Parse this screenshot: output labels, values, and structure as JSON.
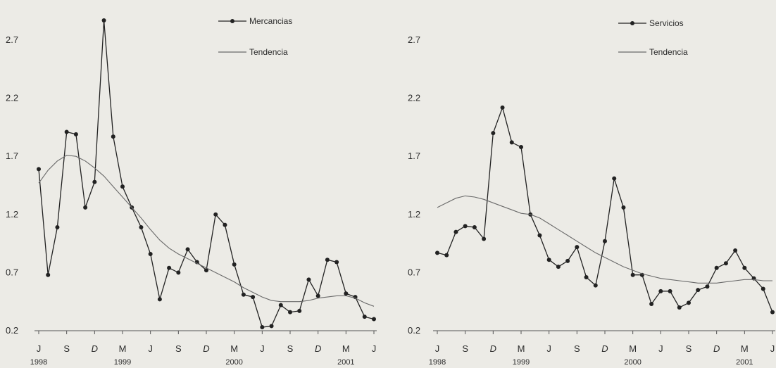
{
  "chart_data": [
    {
      "type": "line",
      "title": "",
      "xlabel": "",
      "ylabel": "",
      "ylim": [
        0.2,
        2.9
      ],
      "yticks": [
        "2.7",
        "2.2",
        "1.7",
        "1.2",
        "0.7",
        "0.2"
      ],
      "x_month_labels": [
        "J",
        "S",
        "D",
        "M",
        "J",
        "S",
        "D",
        "M",
        "J",
        "S",
        "D",
        "M",
        "J"
      ],
      "x_year_labels": [
        "1998",
        "1999",
        "2000",
        "2001"
      ],
      "x_start": "1998-06",
      "x_end": "2001-06",
      "legend_position": "top-right",
      "grid": false,
      "series": [
        {
          "name": "Mercancias",
          "style": "line-with-markers",
          "color": "#222222",
          "values": [
            1.59,
            0.68,
            1.09,
            1.91,
            1.89,
            1.26,
            1.48,
            2.87,
            1.87,
            1.44,
            1.26,
            1.09,
            0.86,
            0.47,
            0.74,
            0.7,
            0.9,
            0.79,
            0.72,
            1.2,
            1.11,
            0.77,
            0.51,
            0.49,
            0.23,
            0.24,
            0.42,
            0.36,
            0.37,
            0.64,
            0.5,
            0.81,
            0.79,
            0.52,
            0.49,
            0.32,
            0.3
          ]
        },
        {
          "name": "Tendencia",
          "style": "line",
          "color": "#6a6a6a",
          "values": [
            1.47,
            1.58,
            1.66,
            1.71,
            1.7,
            1.66,
            1.6,
            1.53,
            1.44,
            1.35,
            1.26,
            1.17,
            1.07,
            0.98,
            0.91,
            0.86,
            0.82,
            0.78,
            0.74,
            0.7,
            0.66,
            0.62,
            0.57,
            0.53,
            0.49,
            0.46,
            0.45,
            0.45,
            0.45,
            0.46,
            0.48,
            0.49,
            0.5,
            0.5,
            0.48,
            0.44,
            0.41
          ]
        }
      ]
    },
    {
      "type": "line",
      "title": "",
      "xlabel": "",
      "ylabel": "",
      "ylim": [
        0.2,
        2.9
      ],
      "yticks": [
        "2.7",
        "2.2",
        "1.7",
        "1.2",
        "0.7",
        "0.2"
      ],
      "x_month_labels": [
        "J",
        "S",
        "D",
        "M",
        "J",
        "S",
        "D",
        "M",
        "J",
        "S",
        "D",
        "M",
        "J"
      ],
      "x_year_labels": [
        "1998",
        "1999",
        "2000",
        "2001"
      ],
      "x_start": "1998-06",
      "x_end": "2001-06",
      "legend_position": "top-right",
      "grid": false,
      "series": [
        {
          "name": "Servicios",
          "style": "line-with-markers",
          "color": "#222222",
          "values": [
            0.87,
            0.85,
            1.05,
            1.1,
            1.09,
            0.99,
            1.9,
            2.12,
            1.82,
            1.78,
            1.2,
            1.02,
            0.81,
            0.75,
            0.8,
            0.92,
            0.66,
            0.59,
            0.97,
            1.51,
            1.26,
            0.68,
            0.68,
            0.43,
            0.54,
            0.54,
            0.4,
            0.44,
            0.55,
            0.58,
            0.74,
            0.78,
            0.89,
            0.74,
            0.65,
            0.56,
            0.36
          ]
        },
        {
          "name": "Tendencia",
          "style": "line",
          "color": "#6a6a6a",
          "values": [
            1.26,
            1.3,
            1.34,
            1.36,
            1.35,
            1.33,
            1.3,
            1.27,
            1.24,
            1.21,
            1.2,
            1.17,
            1.12,
            1.07,
            1.02,
            0.97,
            0.92,
            0.87,
            0.83,
            0.79,
            0.75,
            0.72,
            0.69,
            0.67,
            0.65,
            0.64,
            0.63,
            0.62,
            0.61,
            0.61,
            0.61,
            0.62,
            0.63,
            0.64,
            0.64,
            0.63,
            0.63
          ]
        }
      ]
    }
  ]
}
